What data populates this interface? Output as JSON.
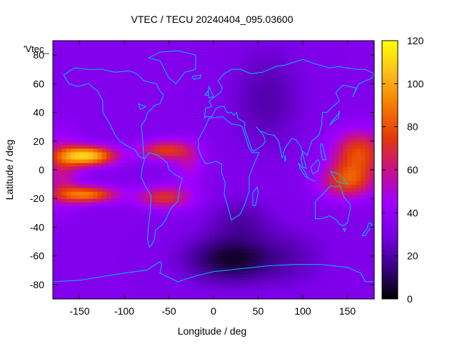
{
  "chart_data": {
    "type": "heatmap",
    "title": "VTEC / TECU 20240404_095.03600",
    "xlabel": "Longitude / deg",
    "ylabel": "Latitude / deg",
    "overlay_label": "'Vtec_",
    "xlim": [
      -180,
      180
    ],
    "ylim": [
      -90,
      90
    ],
    "x_ticks": [
      -150,
      -100,
      -50,
      0,
      50,
      100,
      150
    ],
    "y_ticks": [
      -80,
      -60,
      -40,
      -20,
      0,
      20,
      40,
      60,
      80
    ],
    "colorbar": {
      "range": [
        0,
        120
      ],
      "ticks": [
        0,
        20,
        40,
        60,
        80,
        100,
        120
      ],
      "palette": [
        "#000000",
        "#3a0085",
        "#7a00e6",
        "#a000ff",
        "#c8108a",
        "#e3390a",
        "#f77b00",
        "#ffbe1a",
        "#ffff00"
      ]
    },
    "grid": false,
    "coastline_color": "#00bfff",
    "features": [
      {
        "description": "Equatorial ionization anomaly crests over Pacific",
        "lon": [
          -180,
          -100
        ],
        "lat": [
          -20,
          25
        ],
        "vtec_max": 110
      },
      {
        "description": "Equatorial anomaly over South America / Atlantic",
        "lon": [
          -90,
          -20
        ],
        "lat": [
          -35,
          25
        ],
        "vtec_max": 65
      },
      {
        "description": "Equatorial anomaly over West Pacific / Indonesia",
        "lon": [
          120,
          180
        ],
        "lat": [
          -25,
          35
        ],
        "vtec_max": 80
      },
      {
        "description": "Low TEC region south of Africa",
        "lon": [
          -20,
          70
        ],
        "lat": [
          -75,
          -40
        ],
        "vtec_min": 4
      }
    ]
  }
}
